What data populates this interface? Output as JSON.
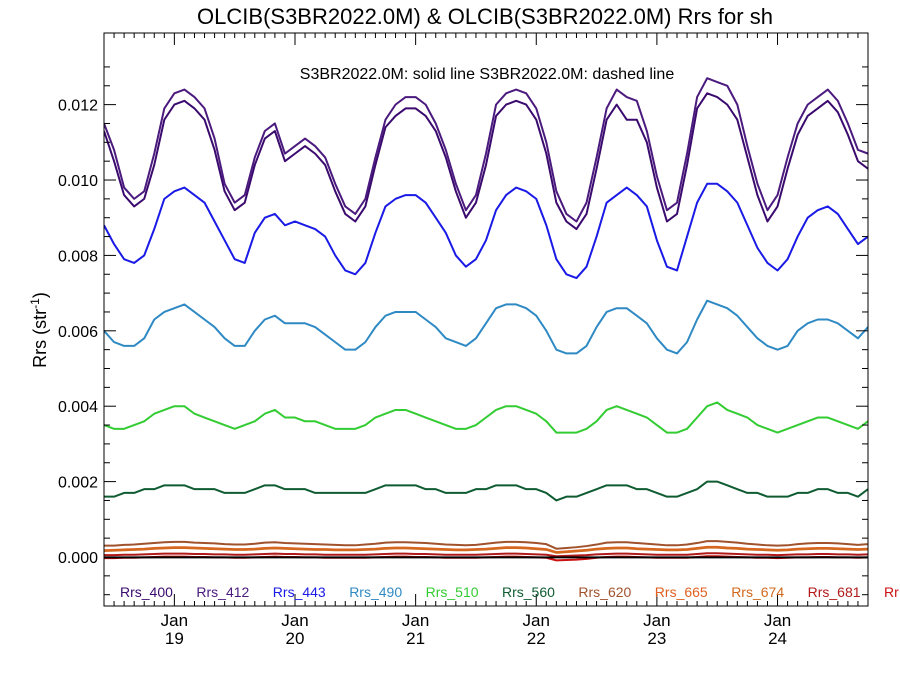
{
  "chart_data": {
    "type": "line",
    "title": "OLCIB(S3BR2022.0M) & OLCIB(S3BR2022.0M)  Rrs for sh",
    "subtitle": "S3BR2022.0M: solid line   S3BR2022.0M: dashed line",
    "ylabel_main": "Rrs (str",
    "ylabel_sup": "-1",
    "ylabel_close": ")",
    "xlim": [
      0,
      76
    ],
    "ylim": [
      -0.0013,
      0.0139
    ],
    "yticks": [
      "0.000",
      "0.002",
      "0.004",
      "0.006",
      "0.008",
      "0.010",
      "0.012"
    ],
    "ytick_values": [
      0.0,
      0.002,
      0.004,
      0.006,
      0.008,
      0.01,
      0.012
    ],
    "xticks": [
      {
        "x": 7,
        "month": "Jan",
        "day": "19"
      },
      {
        "x": 19,
        "month": "Jan",
        "day": "20"
      },
      {
        "x": 31,
        "month": "Jan",
        "day": "21"
      },
      {
        "x": 43,
        "month": "Jan",
        "day": "22"
      },
      {
        "x": 55,
        "month": "Jan",
        "day": "23"
      },
      {
        "x": 67,
        "month": "Jan",
        "day": "24"
      }
    ],
    "legend": [
      {
        "name": "Rrs_400",
        "color": "#3a0a6e"
      },
      {
        "name": "Rrs_412",
        "color": "#4b1a7e"
      },
      {
        "name": "Rrs_443",
        "color": "#1a1ae6"
      },
      {
        "name": "Rrs_490",
        "color": "#2f8ac4"
      },
      {
        "name": "Rrs_510",
        "color": "#33cc33"
      },
      {
        "name": "Rrs_560",
        "color": "#0f5c32"
      },
      {
        "name": "Rrs_620",
        "color": "#a0522d"
      },
      {
        "name": "Rrs_665",
        "color": "#e06020"
      },
      {
        "name": "Rrs_674",
        "color": "#d2691e"
      },
      {
        "name": "Rrs_681",
        "color": "#b01a1a"
      },
      {
        "name": "Rr",
        "color": "#cc1111"
      }
    ],
    "series": [
      {
        "color": "#3a0a6e",
        "values": [
          0.0113,
          0.0105,
          0.0096,
          0.0093,
          0.0095,
          0.0104,
          0.0116,
          0.012,
          0.0121,
          0.0119,
          0.0116,
          0.0108,
          0.0097,
          0.0092,
          0.0094,
          0.0104,
          0.0111,
          0.0113,
          0.0105,
          0.0107,
          0.0109,
          0.0107,
          0.0104,
          0.0097,
          0.0091,
          0.0089,
          0.0093,
          0.0104,
          0.0114,
          0.0117,
          0.0119,
          0.0119,
          0.0117,
          0.0113,
          0.0106,
          0.0097,
          0.009,
          0.0094,
          0.0104,
          0.0117,
          0.012,
          0.0121,
          0.012,
          0.0116,
          0.0107,
          0.0094,
          0.0089,
          0.0087,
          0.0091,
          0.0103,
          0.0116,
          0.012,
          0.0116,
          0.0116,
          0.011,
          0.0098,
          0.0089,
          0.0091,
          0.0104,
          0.0119,
          0.0123,
          0.0122,
          0.012,
          0.0116,
          0.0106,
          0.0096,
          0.0089,
          0.0093,
          0.0103,
          0.0112,
          0.0117,
          0.0119,
          0.0121,
          0.0118,
          0.0112,
          0.0105,
          0.0103
        ]
      },
      {
        "color": "#4b1a7e",
        "values": [
          0.0115,
          0.0108,
          0.0098,
          0.0095,
          0.0097,
          0.0107,
          0.0119,
          0.0123,
          0.0124,
          0.0122,
          0.0119,
          0.0111,
          0.0099,
          0.0094,
          0.0096,
          0.0106,
          0.0113,
          0.0115,
          0.0107,
          0.0109,
          0.0111,
          0.0109,
          0.0106,
          0.0099,
          0.0093,
          0.0091,
          0.0095,
          0.0106,
          0.0116,
          0.012,
          0.0122,
          0.0122,
          0.012,
          0.0115,
          0.0108,
          0.0099,
          0.0092,
          0.0096,
          0.0107,
          0.012,
          0.0123,
          0.0124,
          0.0123,
          0.0119,
          0.011,
          0.0097,
          0.0091,
          0.0089,
          0.0094,
          0.0106,
          0.0119,
          0.0124,
          0.0122,
          0.0121,
          0.0113,
          0.0101,
          0.0092,
          0.0094,
          0.0107,
          0.0122,
          0.0127,
          0.0126,
          0.0125,
          0.012,
          0.0109,
          0.0099,
          0.0092,
          0.0096,
          0.0106,
          0.0115,
          0.012,
          0.0122,
          0.0124,
          0.0121,
          0.0115,
          0.0108,
          0.0107
        ]
      },
      {
        "color": "#1a1ae6",
        "values": [
          0.0088,
          0.0083,
          0.0079,
          0.0078,
          0.008,
          0.0087,
          0.0095,
          0.0097,
          0.0098,
          0.0096,
          0.0094,
          0.0089,
          0.0084,
          0.0079,
          0.0078,
          0.0086,
          0.009,
          0.0091,
          0.0088,
          0.0089,
          0.0088,
          0.0087,
          0.0085,
          0.008,
          0.0076,
          0.0075,
          0.0078,
          0.0086,
          0.0093,
          0.0095,
          0.0096,
          0.0096,
          0.0094,
          0.009,
          0.0086,
          0.008,
          0.0077,
          0.0079,
          0.0084,
          0.0092,
          0.0096,
          0.0098,
          0.0097,
          0.0095,
          0.0088,
          0.0079,
          0.0075,
          0.0074,
          0.0077,
          0.0085,
          0.0094,
          0.0096,
          0.0098,
          0.0096,
          0.0093,
          0.0084,
          0.0077,
          0.0076,
          0.0085,
          0.0094,
          0.0099,
          0.0099,
          0.0097,
          0.0094,
          0.0088,
          0.0082,
          0.0078,
          0.0076,
          0.0079,
          0.0085,
          0.009,
          0.0092,
          0.0093,
          0.0091,
          0.0087,
          0.0083,
          0.0085
        ]
      },
      {
        "color": "#2f8ac4",
        "values": [
          0.006,
          0.0057,
          0.0056,
          0.0056,
          0.0058,
          0.0063,
          0.0065,
          0.0066,
          0.0067,
          0.0065,
          0.0063,
          0.0061,
          0.0058,
          0.0056,
          0.0056,
          0.006,
          0.0063,
          0.0064,
          0.0062,
          0.0062,
          0.0062,
          0.0061,
          0.0059,
          0.0057,
          0.0055,
          0.0055,
          0.0057,
          0.0061,
          0.0064,
          0.0065,
          0.0065,
          0.0065,
          0.0063,
          0.0061,
          0.0058,
          0.0057,
          0.0056,
          0.0058,
          0.0062,
          0.0066,
          0.0067,
          0.0067,
          0.0066,
          0.0064,
          0.006,
          0.0055,
          0.0054,
          0.0054,
          0.0056,
          0.0061,
          0.0065,
          0.0066,
          0.0066,
          0.0064,
          0.0062,
          0.0058,
          0.0055,
          0.0054,
          0.0057,
          0.0063,
          0.0068,
          0.0067,
          0.0066,
          0.0064,
          0.0061,
          0.0058,
          0.0056,
          0.0055,
          0.0056,
          0.006,
          0.0062,
          0.0063,
          0.0063,
          0.0062,
          0.006,
          0.0058,
          0.0061
        ]
      },
      {
        "color": "#33cc33",
        "values": [
          0.0035,
          0.0034,
          0.0034,
          0.0035,
          0.0036,
          0.0038,
          0.0039,
          0.004,
          0.004,
          0.0038,
          0.0037,
          0.0036,
          0.0035,
          0.0034,
          0.0035,
          0.0036,
          0.0038,
          0.0039,
          0.0037,
          0.0037,
          0.0036,
          0.0036,
          0.0035,
          0.0034,
          0.0034,
          0.0034,
          0.0035,
          0.0037,
          0.0038,
          0.0039,
          0.0039,
          0.0038,
          0.0037,
          0.0036,
          0.0035,
          0.0034,
          0.0034,
          0.0035,
          0.0037,
          0.0039,
          0.004,
          0.004,
          0.0039,
          0.0038,
          0.0036,
          0.0033,
          0.0033,
          0.0033,
          0.0034,
          0.0036,
          0.0039,
          0.004,
          0.0039,
          0.0038,
          0.0037,
          0.0035,
          0.0033,
          0.0033,
          0.0034,
          0.0037,
          0.004,
          0.0041,
          0.0039,
          0.0038,
          0.0037,
          0.0035,
          0.0034,
          0.0033,
          0.0034,
          0.0035,
          0.0036,
          0.0037,
          0.0037,
          0.0036,
          0.0035,
          0.0034,
          0.0036
        ]
      },
      {
        "color": "#0f5c32",
        "values": [
          0.0016,
          0.0016,
          0.0017,
          0.0017,
          0.0018,
          0.0018,
          0.0019,
          0.0019,
          0.0019,
          0.0018,
          0.0018,
          0.0018,
          0.0017,
          0.0017,
          0.0017,
          0.0018,
          0.0019,
          0.0019,
          0.0018,
          0.0018,
          0.0018,
          0.0017,
          0.0017,
          0.0017,
          0.0017,
          0.0017,
          0.0017,
          0.0018,
          0.0019,
          0.0019,
          0.0019,
          0.0019,
          0.0018,
          0.0018,
          0.0017,
          0.0017,
          0.0017,
          0.0018,
          0.0018,
          0.0019,
          0.0019,
          0.0019,
          0.0018,
          0.0018,
          0.0017,
          0.0015,
          0.0016,
          0.0016,
          0.0017,
          0.0018,
          0.0019,
          0.0019,
          0.0019,
          0.0018,
          0.0018,
          0.0017,
          0.0016,
          0.0016,
          0.0017,
          0.0018,
          0.002,
          0.002,
          0.0019,
          0.0018,
          0.0017,
          0.0017,
          0.0016,
          0.0016,
          0.0016,
          0.0017,
          0.0017,
          0.0018,
          0.0018,
          0.0017,
          0.0017,
          0.0016,
          0.0018
        ]
      },
      {
        "color": "#a0522d",
        "values": [
          0.0003,
          0.0003,
          0.00032,
          0.00033,
          0.00035,
          0.00037,
          0.00039,
          0.0004,
          0.0004,
          0.00038,
          0.00037,
          0.00036,
          0.00034,
          0.00033,
          0.00033,
          0.00035,
          0.00038,
          0.00039,
          0.00037,
          0.00036,
          0.00035,
          0.00034,
          0.00033,
          0.00032,
          0.00031,
          0.00031,
          0.00033,
          0.00035,
          0.00038,
          0.00039,
          0.00039,
          0.00038,
          0.00037,
          0.00035,
          0.00033,
          0.00032,
          0.00031,
          0.00032,
          0.00035,
          0.00038,
          0.0004,
          0.0004,
          0.00039,
          0.00037,
          0.00034,
          0.00022,
          0.00024,
          0.00026,
          0.00029,
          0.00033,
          0.00038,
          0.00039,
          0.00039,
          0.00037,
          0.00035,
          0.00033,
          0.00031,
          0.00031,
          0.00033,
          0.00037,
          0.00042,
          0.00042,
          0.0004,
          0.00038,
          0.00035,
          0.00033,
          0.00031,
          0.0003,
          0.00031,
          0.00034,
          0.00036,
          0.00037,
          0.00037,
          0.00036,
          0.00034,
          0.00032,
          0.00034
        ]
      },
      {
        "color": "#e06020",
        "values": [
          0.00018,
          0.00019,
          0.0002,
          0.00021,
          0.00022,
          0.00024,
          0.00025,
          0.00026,
          0.00026,
          0.00025,
          0.00024,
          0.00023,
          0.00022,
          0.00021,
          0.00021,
          0.00022,
          0.00024,
          0.00025,
          0.00024,
          0.00023,
          0.00022,
          0.00021,
          0.00021,
          0.0002,
          0.0002,
          0.0002,
          0.00021,
          0.00022,
          0.00024,
          0.00025,
          0.00025,
          0.00024,
          0.00023,
          0.00022,
          0.00021,
          0.0002,
          0.0002,
          0.00021,
          0.00022,
          0.00024,
          0.00026,
          0.00026,
          0.00025,
          0.00023,
          0.00021,
          0.00013,
          0.00015,
          0.00017,
          0.00019,
          0.00022,
          0.00024,
          0.00025,
          0.00025,
          0.00023,
          0.00022,
          0.00021,
          0.0002,
          0.0002,
          0.00021,
          0.00024,
          0.00027,
          0.00027,
          0.00025,
          0.00024,
          0.00022,
          0.00021,
          0.0002,
          0.00019,
          0.0002,
          0.00022,
          0.00023,
          0.00024,
          0.00024,
          0.00023,
          0.00022,
          0.00021,
          0.00022
        ]
      },
      {
        "color": "#d2691e",
        "values": [
          0.00016,
          0.00017,
          0.00018,
          0.00019,
          0.0002,
          0.00022,
          0.00023,
          0.00024,
          0.00024,
          0.00023,
          0.00022,
          0.00021,
          0.0002,
          0.00019,
          0.00019,
          0.0002,
          0.00022,
          0.00023,
          0.00022,
          0.00021,
          0.0002,
          0.00019,
          0.00019,
          0.00018,
          0.00018,
          0.00018,
          0.00019,
          0.0002,
          0.00022,
          0.00023,
          0.00023,
          0.00022,
          0.00021,
          0.0002,
          0.00019,
          0.00018,
          0.00018,
          0.00019,
          0.0002,
          0.00022,
          0.00024,
          0.00024,
          0.00023,
          0.00021,
          0.00019,
          0.00011,
          0.00013,
          0.00015,
          0.00017,
          0.0002,
          0.00022,
          0.00023,
          0.00023,
          0.00021,
          0.0002,
          0.00019,
          0.00018,
          0.00018,
          0.00019,
          0.00022,
          0.00025,
          0.00025,
          0.00023,
          0.00022,
          0.0002,
          0.00019,
          0.00018,
          0.00017,
          0.00018,
          0.0002,
          0.00021,
          0.00022,
          0.00022,
          0.00021,
          0.0002,
          0.00019,
          0.0002
        ]
      },
      {
        "color": "#b01a1a",
        "values": [
          5e-05,
          5e-05,
          6e-05,
          6e-05,
          7e-05,
          8e-05,
          9e-05,
          9e-05,
          9e-05,
          8e-05,
          8e-05,
          7e-05,
          7e-05,
          6e-05,
          6e-05,
          7e-05,
          8e-05,
          9e-05,
          8e-05,
          8e-05,
          7e-05,
          7e-05,
          6e-05,
          6e-05,
          6e-05,
          6e-05,
          6e-05,
          7e-05,
          8e-05,
          9e-05,
          9e-05,
          8e-05,
          8e-05,
          7e-05,
          6e-05,
          6e-05,
          6e-05,
          6e-05,
          7e-05,
          8e-05,
          9e-05,
          9e-05,
          8e-05,
          7e-05,
          6e-05,
          2e-05,
          3e-05,
          4e-05,
          5e-05,
          7e-05,
          8e-05,
          9e-05,
          9e-05,
          8e-05,
          7e-05,
          6e-05,
          6e-05,
          6e-05,
          6e-05,
          8e-05,
          0.0001,
          0.0001,
          9e-05,
          8e-05,
          7e-05,
          6e-05,
          6e-05,
          5e-05,
          6e-05,
          7e-05,
          7e-05,
          8e-05,
          8e-05,
          7e-05,
          7e-05,
          6e-05,
          7e-05
        ]
      },
      {
        "color": "#cc1111",
        "values": [
          -3e-05,
          -3e-05,
          -2e-05,
          -2e-05,
          -1e-05,
          0.0,
          1e-05,
          1e-05,
          1e-05,
          0.0,
          0.0,
          -1e-05,
          -1e-05,
          -2e-05,
          -2e-05,
          -1e-05,
          0.0,
          1e-05,
          0.0,
          0.0,
          -1e-05,
          -1e-05,
          -2e-05,
          -2e-05,
          -2e-05,
          -2e-05,
          -2e-05,
          -1e-05,
          0.0,
          1e-05,
          1e-05,
          0.0,
          0.0,
          -1e-05,
          -2e-05,
          -2e-05,
          -2e-05,
          -2e-05,
          -1e-05,
          0.0,
          1e-05,
          1e-05,
          0.0,
          -1e-05,
          -2e-05,
          -9e-05,
          -8e-05,
          -7e-05,
          -5e-05,
          -2e-05,
          0.0,
          1e-05,
          1e-05,
          0.0,
          -1e-05,
          -2e-05,
          -2e-05,
          -2e-05,
          -2e-05,
          0.0,
          2e-05,
          2e-05,
          1e-05,
          0.0,
          -1e-05,
          -2e-05,
          -2e-05,
          -3e-05,
          -2e-05,
          -1e-05,
          -1e-05,
          0.0,
          0.0,
          -1e-05,
          -1e-05,
          -2e-05,
          -1e-05
        ]
      },
      {
        "color": "#000000",
        "values": [
          -1e-05,
          -1e-05,
          -1e-05,
          -1e-05,
          -1e-05,
          -1e-05,
          -1e-05,
          -1e-05,
          -1e-05,
          -1e-05,
          -1e-05,
          -1e-05,
          -1e-05,
          -1e-05,
          -1e-05,
          -1e-05,
          -1e-05,
          -1e-05,
          -1e-05,
          -1e-05,
          -1e-05,
          -1e-05,
          -1e-05,
          -1e-05,
          -1e-05,
          -1e-05,
          -1e-05,
          -1e-05,
          -1e-05,
          -1e-05,
          -1e-05,
          -1e-05,
          -1e-05,
          -1e-05,
          -1e-05,
          -1e-05,
          -1e-05,
          -1e-05,
          -1e-05,
          -1e-05,
          -1e-05,
          -1e-05,
          -1e-05,
          -1e-05,
          -1e-05,
          -1e-05,
          -1e-05,
          -1e-05,
          -1e-05,
          -1e-05,
          -1e-05,
          -1e-05,
          -1e-05,
          -1e-05,
          -1e-05,
          -1e-05,
          -1e-05,
          -1e-05,
          -1e-05,
          -1e-05,
          -1e-05,
          -1e-05,
          -1e-05,
          -1e-05,
          -1e-05,
          -1e-05,
          -1e-05,
          -1e-05,
          -1e-05,
          -1e-05,
          -1e-05,
          -1e-05,
          -1e-05,
          -1e-05,
          -1e-05,
          -1e-05,
          -1e-05
        ]
      }
    ]
  }
}
